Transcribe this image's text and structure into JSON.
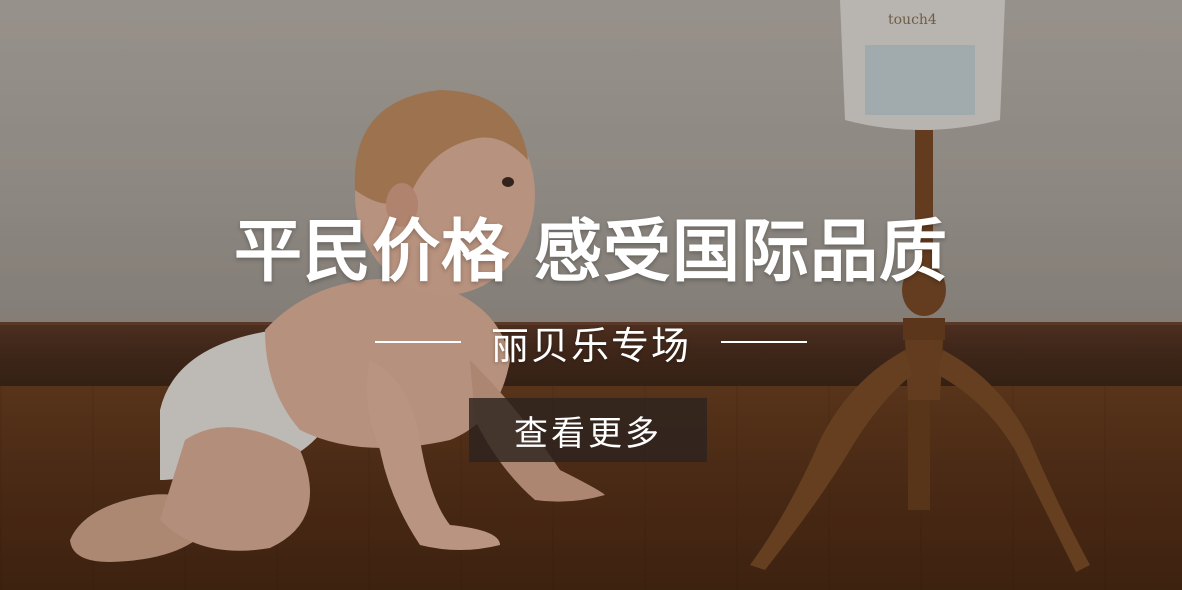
{
  "banner": {
    "headline_left": "平民价格",
    "headline_right": "感受国际品质",
    "subtitle": "丽贝乐专场",
    "cta_label": "查看更多",
    "product_package_text": "touch4"
  },
  "colors": {
    "text": "#ffffff",
    "cta_background": "#2d231e",
    "wall": "#b4aea7",
    "floor": "#5a3219",
    "baseboard": "#4d2f1f"
  }
}
